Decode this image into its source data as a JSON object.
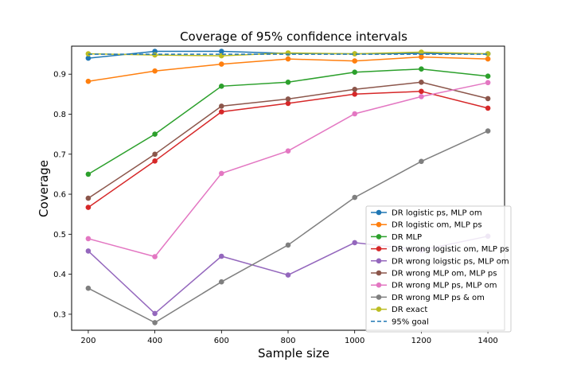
{
  "chart_data": {
    "type": "line",
    "title": "Coverage of 95% confidence intervals",
    "xlabel": "Sample size",
    "ylabel": "Coverage",
    "x": [
      200,
      400,
      600,
      800,
      1000,
      1200,
      1400
    ],
    "xlim": [
      150,
      1450
    ],
    "ylim": [
      0.26,
      0.97
    ],
    "xticks": [
      200,
      400,
      600,
      800,
      1000,
      1200,
      1400
    ],
    "yticks": [
      0.3,
      0.4,
      0.5,
      0.6,
      0.7,
      0.8,
      0.9
    ],
    "grid": false,
    "legend_position": "lower-right",
    "series": [
      {
        "name": "DR logistic ps, MLP om",
        "color": "#1f77b4",
        "values": [
          0.94,
          0.957,
          0.957,
          0.952,
          0.951,
          0.952,
          0.951
        ]
      },
      {
        "name": "DR logistic om, MLP ps",
        "color": "#ff7f0e",
        "values": [
          0.882,
          0.908,
          0.925,
          0.938,
          0.933,
          0.943,
          0.938
        ]
      },
      {
        "name": "DR MLP",
        "color": "#2ca02c",
        "values": [
          0.65,
          0.75,
          0.87,
          0.88,
          0.905,
          0.913,
          0.895
        ]
      },
      {
        "name": "DR wrong logistic om, MLP ps",
        "color": "#d62728",
        "values": [
          0.567,
          0.683,
          0.806,
          0.827,
          0.85,
          0.857,
          0.815
        ]
      },
      {
        "name": "DR wrong loigstic ps, MLP om",
        "color": "#9467bd",
        "values": [
          0.458,
          0.302,
          0.445,
          0.398,
          0.479,
          0.46,
          0.495
        ]
      },
      {
        "name": "DR wrong MLP om, MLP ps",
        "color": "#8c564b",
        "values": [
          0.59,
          0.7,
          0.82,
          0.838,
          0.862,
          0.88,
          0.839
        ]
      },
      {
        "name": "DR wrong MLP ps, MLP om",
        "color": "#e377c2",
        "values": [
          0.489,
          0.444,
          0.652,
          0.708,
          0.801,
          0.844,
          0.879
        ]
      },
      {
        "name": "DR wrong MLP ps & om",
        "color": "#7f7f7f",
        "values": [
          0.365,
          0.279,
          0.381,
          0.473,
          0.592,
          0.682,
          0.758
        ]
      },
      {
        "name": "DR exact",
        "color": "#bcbd22",
        "values": [
          0.951,
          0.948,
          0.946,
          0.953,
          0.951,
          0.955,
          0.951
        ]
      },
      {
        "name": "95% goal",
        "color": "#1f77b4",
        "dashed": true,
        "values": [
          0.95,
          0.95,
          0.95,
          0.95,
          0.95,
          0.95,
          0.95
        ]
      }
    ]
  }
}
